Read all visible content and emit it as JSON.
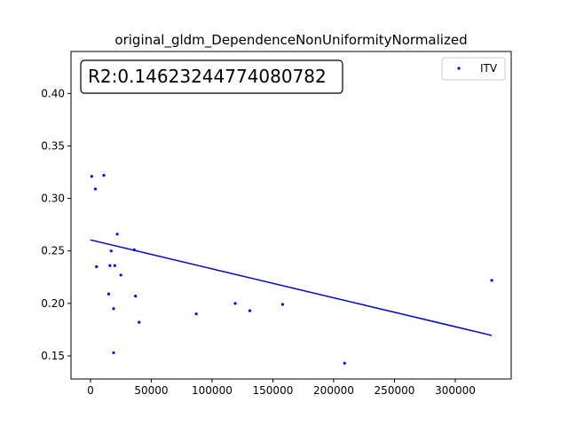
{
  "chart_data": {
    "type": "scatter",
    "title": "original_gldm_DependenceNonUniformityNormalized",
    "annotation": "R2:0.14623244774080782",
    "xlabel": "",
    "ylabel": "",
    "xlim": [
      -16000,
      346000
    ],
    "ylim": [
      0.128,
      0.44
    ],
    "x_ticks": [
      0,
      50000,
      100000,
      150000,
      200000,
      250000,
      300000
    ],
    "y_ticks": [
      0.15,
      0.2,
      0.25,
      0.3,
      0.35,
      0.4
    ],
    "legend": {
      "position": "top-right",
      "entries": [
        "ITV"
      ]
    },
    "series": [
      {
        "name": "ITV",
        "color": "#0000ff",
        "points": [
          [
            1000,
            0.321
          ],
          [
            4000,
            0.309
          ],
          [
            11000,
            0.322
          ],
          [
            5000,
            0.235
          ],
          [
            15000,
            0.209
          ],
          [
            16000,
            0.236
          ],
          [
            17000,
            0.25
          ],
          [
            19000,
            0.195
          ],
          [
            20000,
            0.236
          ],
          [
            19000,
            0.153
          ],
          [
            22000,
            0.266
          ],
          [
            25000,
            0.227
          ],
          [
            36000,
            0.251
          ],
          [
            37000,
            0.207
          ],
          [
            40000,
            0.182
          ],
          [
            87000,
            0.19
          ],
          [
            119000,
            0.2
          ],
          [
            131000,
            0.193
          ],
          [
            158000,
            0.199
          ],
          [
            209000,
            0.143
          ],
          [
            330000,
            0.222
          ]
        ]
      }
    ],
    "fit_line": {
      "color": "#0000cc",
      "x": [
        0,
        330000
      ],
      "y": [
        0.2605,
        0.1695
      ]
    }
  }
}
